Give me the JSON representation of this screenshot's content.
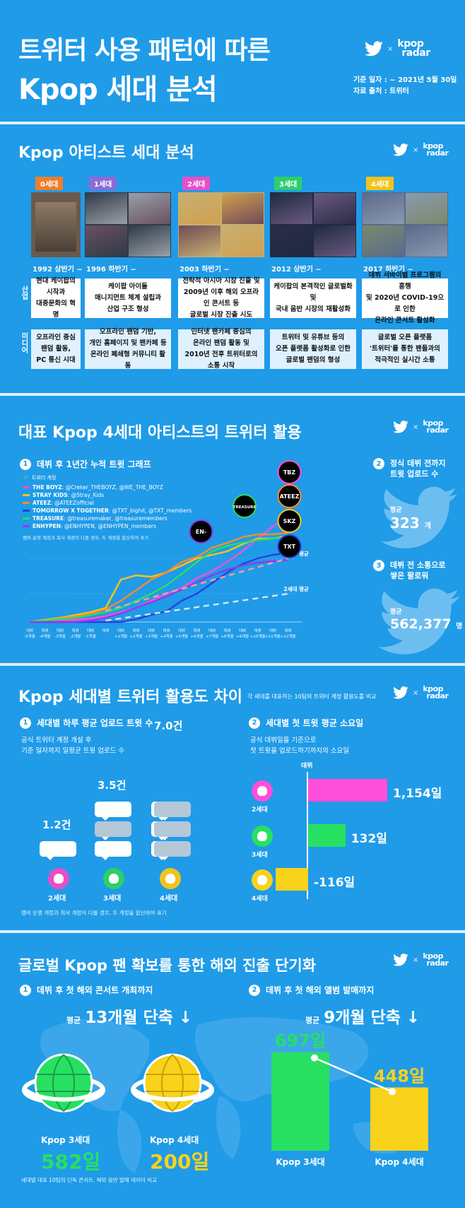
{
  "header": {
    "title_line1": "트위터 사용 패턴에 따른",
    "title_line2": "Kpop 세대 분석",
    "date": "기준 일자 : ~ 2021년 5월 30일",
    "source": "자료 출처 : 트위터",
    "brand_x": "×",
    "brand_line1": "kpop",
    "brand_line2": "radar"
  },
  "s1": {
    "title": "Kpop 아티스트 세대 분석",
    "side_industry": "산업",
    "side_media": "미디어",
    "gens": [
      {
        "tag": "0세대",
        "color": "#f07e2a",
        "period": "1992 상반기 ~",
        "industry": "현대 케이팝의\n시작과\n대중문화의 혁명",
        "media": "오프라인 중심\n팬덤 활동,\nPC 통신 시대"
      },
      {
        "tag": "1세대",
        "color": "#8b6bd6",
        "period": "1996 하반기 ~",
        "industry": "케이팝 아이돌\n매니지먼트 체계 설립과\n산업 구조 형성",
        "media": "오프라인 팬덤 기반,\n개인 홈페이지 및 팬카페 등\n온라인 폐쇄형 커뮤니티 활동"
      },
      {
        "tag": "2세대",
        "color": "#e64fc7",
        "period": "2003 하반기 ~",
        "industry": "전략적 아시아 시장 진출 및\n2009년 이후 해외 오프라인 콘서트 등\n글로벌 시장 진출 시도",
        "media": "인터넷 팬카페 중심의\n온라인 팬덤 활동 및\n2010년 전후 트위터로의 소통 시작"
      },
      {
        "tag": "3세대",
        "color": "#2bd069",
        "period": "2012 상반기 ~",
        "industry": "케이팝의 본격적인 글로벌화 및\n국내 음반 시장의 재활성화",
        "media": "트위터 및 유튜브 등의\n오픈 플랫폼 활성화로 인한\n글로벌 팬덤의 형성"
      },
      {
        "tag": "4세대",
        "color": "#f2c31c",
        "period": "2017 하반기 ~",
        "industry": "데뷔 서바이벌 프로그램의 흥행\n및 2020년 COVID-19으로 인한\n온라인 콘서트 활성화",
        "media": "글로벌 오픈 플랫폼\n'트위터'를 통한 팬들과의\n적극적인 실시간 소통"
      }
    ]
  },
  "s2": {
    "title": "대표 Kpop 4세대 아티스트의 트위터 활용",
    "sub1_num": "1",
    "sub1": "데뷔 후 1년간 누적 트윗 그래프",
    "legend_header": "트위터 계정",
    "legend": [
      {
        "name": "THE BOYZ",
        "acct": " : @Creker_THEBOYZ, @WE_THE_BOYZ",
        "color": "#ff4fd8"
      },
      {
        "name": "STRAY KIDS",
        "acct": " : @Stray_Kids",
        "color": "#f9c51a"
      },
      {
        "name": "ATEEZ",
        "acct": " : @ATEEZofficial",
        "color": "#ff8c2a"
      },
      {
        "name": "TOMORROW X TOGETHER",
        "acct": " : @TXT_bighit, @TXT_members",
        "color": "#2a3fe0"
      },
      {
        "name": "TREASURE",
        "acct": " : @treasuremaker, @treasuremembers",
        "color": "#27e062"
      },
      {
        "name": "ENHYPEN",
        "acct": " : @ENHYPEN, @ENHYPEN_members",
        "color": "#8a3cf0"
      }
    ],
    "legend_note": "멤버 운영 계정과 회사 계정이 다를 경우, 두 계정을 합산하여 표기",
    "avg3": "3세대 평균",
    "avg2": "2세대 평균",
    "xticks": [
      "데뷔\n-5개월",
      "데뷔\n-4개월",
      "데뷔\n-3개월",
      "데뷔\n-2개월",
      "데뷔\n-1개월",
      "데뷔",
      "데뷔\n+1개월",
      "데뷔\n+2개월",
      "데뷔\n+3개월",
      "데뷔\n+4개월",
      "데뷔\n+5개월",
      "데뷔\n+6개월",
      "데뷔\n+7개월",
      "데뷔\n+8개월",
      "데뷔\n+9개월",
      "데뷔\n+10개월",
      "데뷔\n+11개월",
      "데뷔\n+12개월"
    ],
    "badges": [
      "TBZ",
      "ATEEZ",
      "SKZ",
      "TXT",
      "TREASURE",
      "EN-"
    ],
    "sub2_num": "2",
    "sub2": "정식 데뷔 전까지\n트윗 업로드 수",
    "avg_label": "평균",
    "tweets": "323",
    "tweets_unit": "개",
    "sub3_num": "3",
    "sub3": "데뷔 전 소통으로\n쌓은 팔로워",
    "followers": "562,377",
    "followers_unit": "명"
  },
  "s3": {
    "title": "Kpop 세대별 트위터 활용도 차이",
    "title_note": "각 세대를 대표하는 10팀의 트위터 계정 활용도를 비교",
    "sub1_num": "1",
    "sub1": "세대별 하루 평균 업로드 트윗 수",
    "sub1_desc": "공식 트위터 계정 개설 후\n기준 일자까지 일평균 트윗 업로드 수",
    "daily": [
      {
        "gen": "2세대",
        "value": "1.2건",
        "color": "#e64fc7"
      },
      {
        "gen": "3세대",
        "value": "3.5건",
        "color": "#2bd069"
      },
      {
        "gen": "4세대",
        "value": "7.0건",
        "color": "#f2c31c"
      }
    ],
    "sub2_num": "2",
    "sub2": "세대별 첫 트윗 평균 소요일",
    "sub2_desc": "공식 데뷔일을 기준으로\n첫 트윗을 업로드하기까지의 소요일",
    "debut_label": "데뷔",
    "first": [
      {
        "gen": "2세대",
        "value": "1,154일",
        "days": 1154,
        "color": "#ff4fd8"
      },
      {
        "gen": "3세대",
        "value": "132일",
        "days": 132,
        "color": "#27e062"
      },
      {
        "gen": "4세대",
        "value": "-116일",
        "days": -116,
        "color": "#f9d21c"
      }
    ],
    "note": "멤버 운영 계정과 회사 계정이 다를 경우, 두 계정을 합산하여 표기"
  },
  "s4": {
    "title": "글로벌 Kpop 팬 확보를 통한 해외 진출 단기화",
    "sub1_num": "1",
    "sub1": "데뷔 후 첫 해외 콘서트 개최까지",
    "avg": "평균",
    "reduce1": "13개월 단축 ↓",
    "sub2_num": "2",
    "sub2": "데뷔 후 첫 해외 앨범 발매까지",
    "reduce2": "9개월 단축 ↓",
    "g3": "Kpop 3세대",
    "g4": "Kpop 4세대",
    "concert3": "582일",
    "concert4": "200일",
    "album3": "697일",
    "album4": "448일",
    "note": "세대별 대표 10팀의 단독 콘서트, 해외 음반 발매 데이터 비교"
  }
}
